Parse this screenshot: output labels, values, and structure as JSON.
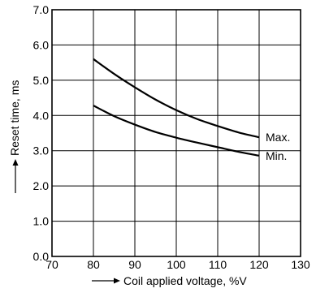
{
  "chart_data": {
    "type": "line",
    "xlabel": "Coil applied voltage, %V",
    "ylabel": "Reset time, ms",
    "xlim": [
      70,
      130
    ],
    "ylim": [
      0.0,
      7.0
    ],
    "x_ticks": [
      70,
      80,
      90,
      100,
      110,
      120,
      130
    ],
    "x_tick_labels": [
      "70",
      "80",
      "90",
      "100",
      "110",
      "120",
      "130"
    ],
    "y_ticks": [
      0.0,
      1.0,
      2.0,
      3.0,
      4.0,
      5.0,
      6.0,
      7.0
    ],
    "y_tick_labels": [
      "0.0",
      "1.0",
      "2.0",
      "3.0",
      "4.0",
      "5.0",
      "6.0",
      "7.0"
    ],
    "grid": true,
    "legend": "none",
    "series": [
      {
        "name": "Max.",
        "x": [
          80,
          85,
          90,
          95,
          100,
          105,
          110,
          115,
          120
        ],
        "values": [
          5.6,
          5.18,
          4.8,
          4.45,
          4.15,
          3.9,
          3.7,
          3.52,
          3.38
        ]
      },
      {
        "name": "Min.",
        "x": [
          80,
          85,
          90,
          95,
          100,
          105,
          110,
          115,
          120
        ],
        "values": [
          4.28,
          3.98,
          3.74,
          3.53,
          3.37,
          3.23,
          3.1,
          2.97,
          2.86
        ]
      }
    ]
  }
}
